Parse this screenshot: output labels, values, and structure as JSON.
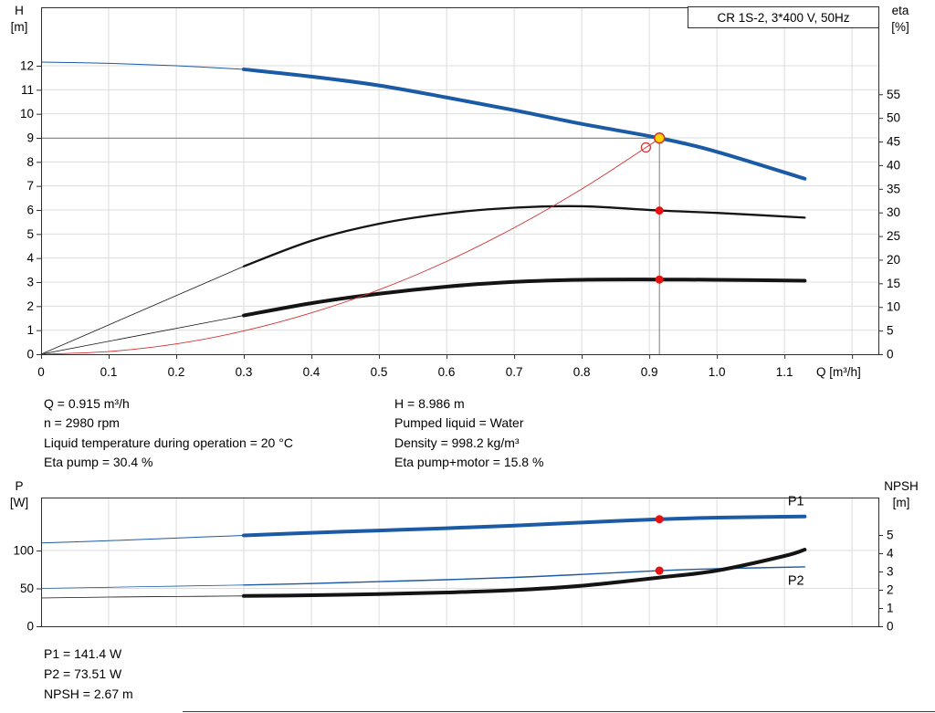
{
  "title_box": "CR 1S-2, 3*400 V, 50Hz",
  "colors": {
    "curve_blue": "#1b5aa5",
    "curve_black": "#141414",
    "curve_red": "#d03030",
    "dot_red": "#e81010",
    "dot_yellow": "#ffd400",
    "duty_line": "#7a7a7a",
    "grid": "#dcdcdc",
    "frame": "#2e2e2e"
  },
  "info_panel": {
    "left": [
      "Q = 0.915 m³/h",
      "n = 2980 rpm",
      "Liquid temperature during operation = 20 °C",
      "Eta pump = 30.4 %"
    ],
    "right": [
      "H = 8.986 m",
      "Pumped liquid = Water",
      "Density = 998.2 kg/m³",
      "Eta pump+motor = 15.8 %"
    ]
  },
  "results_panel": [
    "P1 = 141.4 W",
    "P2 = 73.51 W",
    "NPSH = 2.67 m"
  ],
  "chart_data": [
    {
      "name": "hq-eta-chart",
      "type": "line",
      "title": "CR 1S-2, 3*400 V, 50Hz",
      "x_axis": {
        "label": "Q [m³/h]",
        "min": 0,
        "max": 1.239,
        "ticks": [
          [
            0,
            "0"
          ],
          [
            0.1,
            "0.1"
          ],
          [
            0.2,
            "0.2"
          ],
          [
            0.3,
            "0.3"
          ],
          [
            0.4,
            "0.4"
          ],
          [
            0.5,
            "0.5"
          ],
          [
            0.6,
            "0.6"
          ],
          [
            0.7,
            "0.7"
          ],
          [
            0.8,
            "0.8"
          ],
          [
            0.9,
            "0.9"
          ],
          [
            1,
            "1.0"
          ],
          [
            1.1,
            "1.1"
          ],
          [
            1.2,
            ""
          ]
        ],
        "grid": [
          0.1,
          0.2,
          0.3,
          0.4,
          0.5,
          0.6,
          0.7,
          0.8,
          0.9,
          1,
          1.1,
          1.2
        ]
      },
      "y_left": {
        "label": "H",
        "unit": "[m]",
        "min": 0,
        "max": 14.43,
        "ticks": [
          [
            0,
            "0"
          ],
          [
            1,
            "1"
          ],
          [
            2,
            "2"
          ],
          [
            3,
            "3"
          ],
          [
            4,
            "4"
          ],
          [
            5,
            "5"
          ],
          [
            6,
            "6"
          ],
          [
            7,
            "7"
          ],
          [
            8,
            "8"
          ],
          [
            9,
            "9"
          ],
          [
            10,
            "10"
          ],
          [
            11,
            "11"
          ],
          [
            12,
            "12"
          ]
        ],
        "grid": [
          1,
          2,
          3,
          4,
          5,
          6,
          7,
          8,
          9,
          10,
          11,
          12
        ]
      },
      "y_right": {
        "label": "eta",
        "unit": "[%]",
        "min": 0,
        "max": 73.4,
        "ticks": [
          [
            0,
            "0"
          ],
          [
            5,
            "5"
          ],
          [
            10,
            "10"
          ],
          [
            15,
            "15"
          ],
          [
            20,
            "20"
          ],
          [
            25,
            "25"
          ],
          [
            30,
            "30"
          ],
          [
            35,
            "35"
          ],
          [
            40,
            "40"
          ],
          [
            45,
            "45"
          ],
          [
            50,
            "50"
          ],
          [
            55,
            "55"
          ]
        ],
        "grid": []
      },
      "duty_point": {
        "q": 0.915,
        "h": 8.986
      },
      "series": [
        {
          "id": "hq-curve",
          "name": "H",
          "axis": "left",
          "color": "curve_blue",
          "width": 4,
          "thin_width": 1,
          "thin_until": 0.3,
          "x": [
            0,
            0.1,
            0.2,
            0.3,
            0.4,
            0.5,
            0.6,
            0.7,
            0.8,
            0.915,
            1.0,
            1.13
          ],
          "y": [
            12.15,
            12.1,
            12.0,
            11.85,
            11.55,
            11.18,
            10.68,
            10.15,
            9.58,
            8.99,
            8.42,
            7.3
          ]
        },
        {
          "id": "eta-pump-curve",
          "name": "Eta pump",
          "axis": "right",
          "color": "curve_black",
          "width": 2.3,
          "thin_width": 0.8,
          "thin_until": 0.3,
          "x": [
            0,
            0.3,
            0.4,
            0.5,
            0.6,
            0.7,
            0.8,
            0.915,
            1.0,
            1.13
          ],
          "y": [
            0,
            18.6,
            24.0,
            27.6,
            29.8,
            31.0,
            31.3,
            30.4,
            29.9,
            28.9
          ]
        },
        {
          "id": "eta-pump-motor-curve",
          "name": "Eta pump+motor",
          "axis": "right",
          "color": "curve_black",
          "width": 4,
          "thin_width": 0.8,
          "thin_until": 0.3,
          "x": [
            0,
            0.3,
            0.4,
            0.5,
            0.6,
            0.7,
            0.8,
            0.915,
            1.0,
            1.13
          ],
          "y": [
            0,
            8.2,
            10.8,
            12.8,
            14.3,
            15.3,
            15.75,
            15.8,
            15.75,
            15.55
          ]
        },
        {
          "id": "system-curve",
          "name": "System curve",
          "axis": "left",
          "color": "curve_red",
          "width": 0.9,
          "x": [
            0,
            0.1,
            0.2,
            0.3,
            0.4,
            0.5,
            0.6,
            0.7,
            0.8,
            0.9,
            0.915
          ],
          "y": [
            0,
            0.11,
            0.43,
            0.97,
            1.72,
            2.68,
            3.86,
            5.26,
            6.87,
            8.69,
            8.99
          ]
        }
      ],
      "markers": [
        {
          "id": "system-curve-endpoint",
          "type": "open",
          "axis": "left",
          "q": 0.895,
          "v": 8.6,
          "color": "curve_red",
          "r": 5
        },
        {
          "id": "duty-point-marker",
          "type": "dot",
          "axis": "left",
          "q": 0.915,
          "v": 8.99,
          "fill": "dot_yellow",
          "stroke": "curve_red",
          "r": 5.5
        },
        {
          "id": "eta-pump-point",
          "type": "dot",
          "axis": "right",
          "q": 0.915,
          "v": 30.4,
          "fill": "dot_red",
          "r": 4.5
        },
        {
          "id": "eta-pump-motor-point",
          "type": "dot",
          "axis": "right",
          "q": 0.915,
          "v": 15.8,
          "fill": "dot_red",
          "r": 4.5
        }
      ]
    },
    {
      "name": "power-npsh-chart",
      "type": "line",
      "x_axis": {
        "label": "",
        "min": 0,
        "max": 1.239,
        "ticks": [],
        "grid": [
          0.1,
          0.2,
          0.3,
          0.4,
          0.5,
          0.6,
          0.7,
          0.8,
          0.9,
          1,
          1.1,
          1.2
        ]
      },
      "y_left": {
        "label": "P",
        "unit": "[W]",
        "min": 0,
        "max": 170,
        "ticks": [
          [
            0,
            "0"
          ],
          [
            50,
            "50"
          ],
          [
            100,
            "100"
          ]
        ],
        "grid": [
          50,
          100
        ]
      },
      "y_right": {
        "label": "NPSH",
        "unit": "[m]",
        "min": 0,
        "max": 7.05,
        "ticks": [
          [
            0,
            "0"
          ],
          [
            1,
            "1"
          ],
          [
            2,
            "2"
          ],
          [
            3,
            "3"
          ],
          [
            4,
            "4"
          ],
          [
            5,
            "5"
          ]
        ],
        "grid": []
      },
      "series": [
        {
          "id": "p1-curve",
          "name": "P1",
          "axis": "left",
          "color": "curve_blue",
          "width": 4,
          "thin_width": 1,
          "thin_until": 0.3,
          "x": [
            0,
            0.1,
            0.2,
            0.3,
            0.4,
            0.5,
            0.6,
            0.7,
            0.8,
            0.915,
            1.0,
            1.13
          ],
          "y": [
            110,
            113,
            116.5,
            120,
            123.5,
            126.5,
            129.5,
            133,
            137,
            141.4,
            143.5,
            145
          ],
          "label_pos": {
            "q": 1.105,
            "v": 160
          }
        },
        {
          "id": "p2-curve",
          "name": "P2",
          "axis": "left",
          "color": "curve_blue",
          "width": 1.4,
          "thin_width": 0.8,
          "thin_until": 0.3,
          "x": [
            0,
            0.1,
            0.2,
            0.3,
            0.4,
            0.5,
            0.6,
            0.7,
            0.8,
            0.915,
            1.0,
            1.13
          ],
          "y": [
            50,
            51.5,
            53,
            54.5,
            56.5,
            59,
            61.5,
            64.5,
            68.5,
            73.51,
            76,
            78.5
          ],
          "label_pos": {
            "q": 1.105,
            "v": 55
          }
        },
        {
          "id": "npsh-curve",
          "name": "NPSH",
          "axis": "right",
          "color": "curve_black",
          "width": 4,
          "thin_width": 0.8,
          "thin_until": 0.3,
          "x": [
            0,
            0.1,
            0.2,
            0.3,
            0.4,
            0.5,
            0.6,
            0.7,
            0.8,
            0.915,
            1.0,
            1.1,
            1.13
          ],
          "y": [
            1.55,
            1.6,
            1.63,
            1.66,
            1.7,
            1.76,
            1.85,
            1.98,
            2.22,
            2.67,
            3.05,
            3.85,
            4.2
          ]
        }
      ],
      "markers": [
        {
          "id": "p1-point",
          "type": "dot",
          "axis": "left",
          "q": 0.915,
          "v": 141.4,
          "fill": "dot_red",
          "r": 4.5
        },
        {
          "id": "p2-point",
          "type": "dot",
          "axis": "left",
          "q": 0.915,
          "v": 73.51,
          "fill": "dot_red",
          "r": 4.5
        }
      ]
    }
  ]
}
